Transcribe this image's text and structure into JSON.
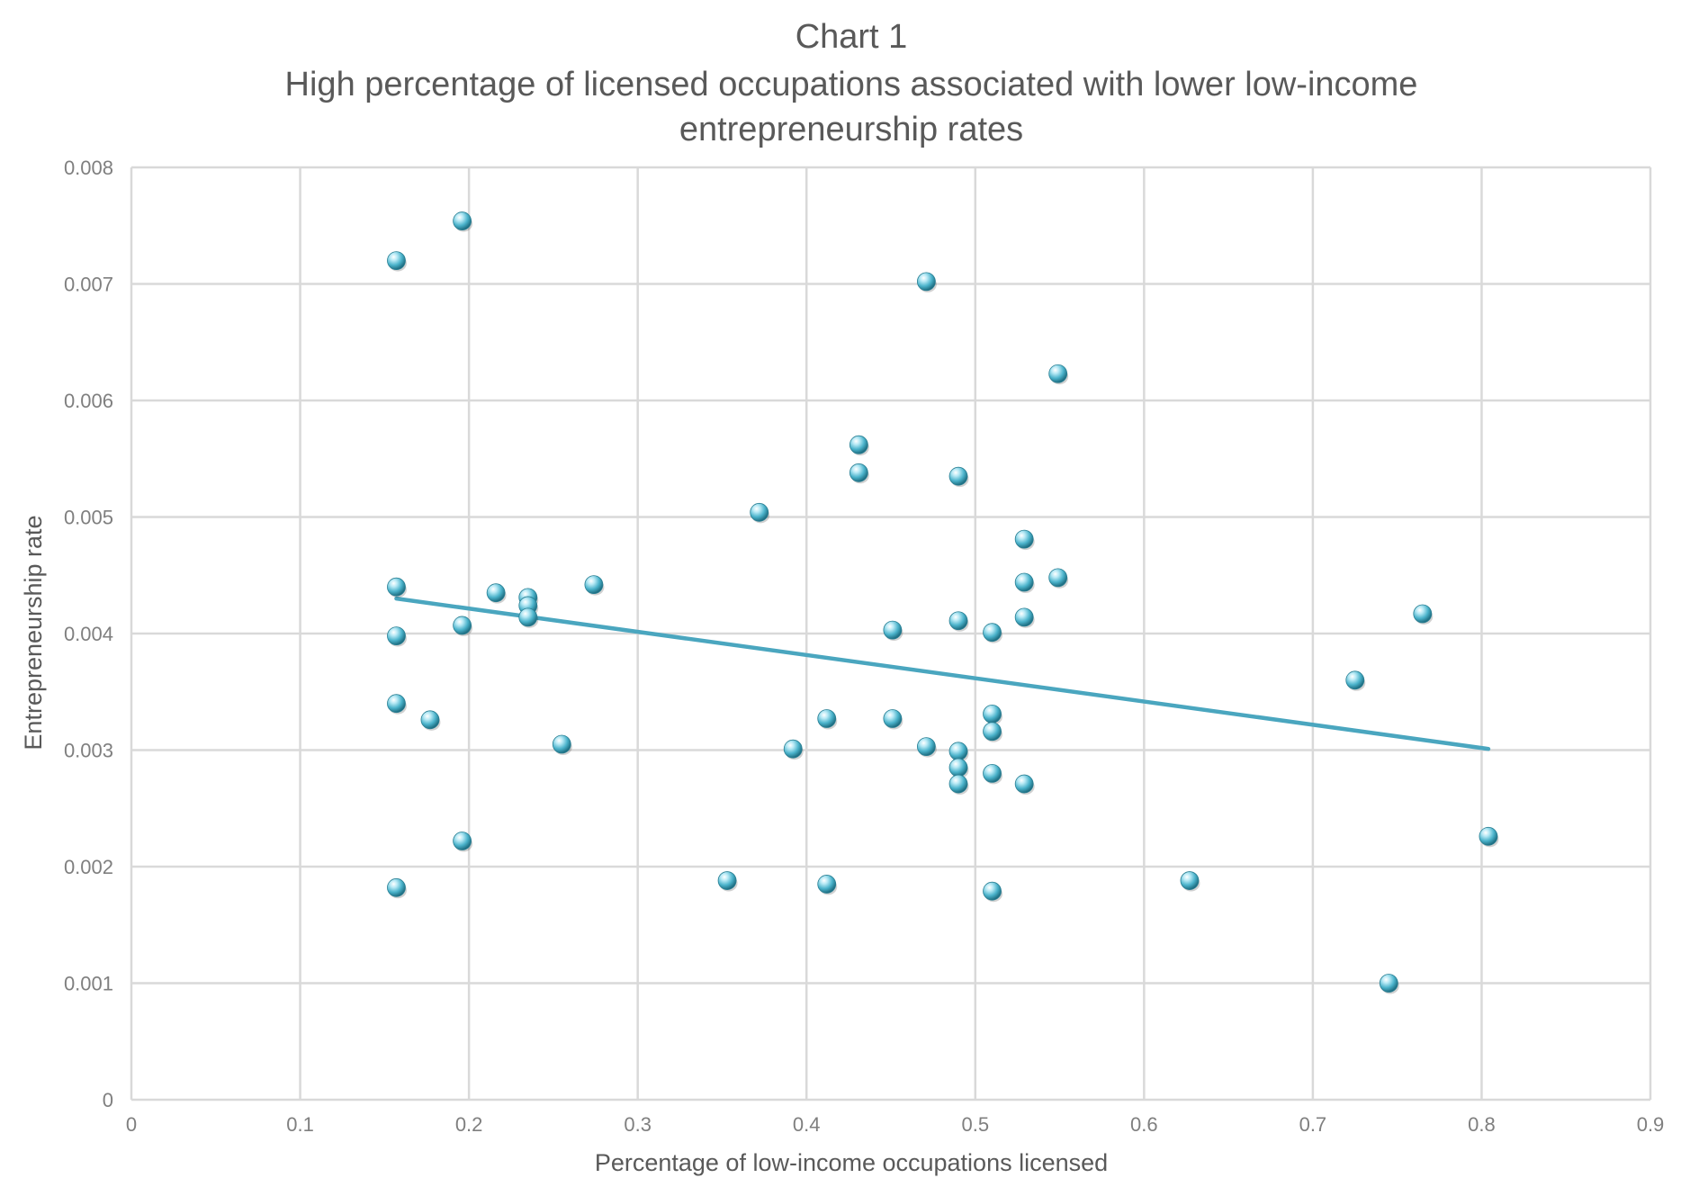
{
  "colors": {
    "marker": "#4bb3cb",
    "trendline": "#4aa6bf",
    "gridline": "#d9d9d9",
    "tick_text": "#7f7f7f",
    "title_text": "#595959"
  },
  "chart_data": {
    "type": "scatter",
    "title": "Chart 1",
    "subtitle": "High percentage of licensed occupations associated with lower low-income entrepreneurship rates",
    "xlabel": "Percentage of low-income occupations licensed",
    "ylabel": "Entrepreneurship rate",
    "xlim": [
      0,
      0.9
    ],
    "ylim": [
      0,
      0.008
    ],
    "x_ticks": [
      "0",
      "0.1",
      "0.2",
      "0.3",
      "0.4",
      "0.5",
      "0.6",
      "0.7",
      "0.8",
      "0.9"
    ],
    "y_ticks": [
      "0",
      "0.001",
      "0.002",
      "0.003",
      "0.004",
      "0.005",
      "0.006",
      "0.007",
      "0.008"
    ],
    "grid": true,
    "legend": "none",
    "trendline": {
      "type": "linear",
      "points": [
        [
          0.157,
          0.0043
        ],
        [
          0.804,
          0.00301
        ]
      ]
    },
    "series": [
      {
        "points": [
          [
            0.157,
            0.0072
          ],
          [
            0.196,
            0.00754
          ],
          [
            0.157,
            0.0044
          ],
          [
            0.157,
            0.00398
          ],
          [
            0.157,
            0.0034
          ],
          [
            0.157,
            0.00182
          ],
          [
            0.177,
            0.00326
          ],
          [
            0.196,
            0.00407
          ],
          [
            0.196,
            0.00222
          ],
          [
            0.216,
            0.00435
          ],
          [
            0.235,
            0.00431
          ],
          [
            0.235,
            0.00424
          ],
          [
            0.235,
            0.00414
          ],
          [
            0.255,
            0.00305
          ],
          [
            0.274,
            0.00442
          ],
          [
            0.353,
            0.00188
          ],
          [
            0.372,
            0.00504
          ],
          [
            0.392,
            0.00301
          ],
          [
            0.412,
            0.00327
          ],
          [
            0.412,
            0.00185
          ],
          [
            0.431,
            0.00562
          ],
          [
            0.431,
            0.00538
          ],
          [
            0.451,
            0.00403
          ],
          [
            0.451,
            0.00327
          ],
          [
            0.471,
            0.00702
          ],
          [
            0.471,
            0.00303
          ],
          [
            0.49,
            0.00535
          ],
          [
            0.49,
            0.00411
          ],
          [
            0.49,
            0.00299
          ],
          [
            0.49,
            0.00285
          ],
          [
            0.49,
            0.00271
          ],
          [
            0.51,
            0.00401
          ],
          [
            0.51,
            0.00331
          ],
          [
            0.51,
            0.00316
          ],
          [
            0.51,
            0.0028
          ],
          [
            0.51,
            0.00179
          ],
          [
            0.529,
            0.00481
          ],
          [
            0.529,
            0.00444
          ],
          [
            0.529,
            0.00414
          ],
          [
            0.529,
            0.00271
          ],
          [
            0.549,
            0.00623
          ],
          [
            0.549,
            0.00448
          ],
          [
            0.627,
            0.00188
          ],
          [
            0.725,
            0.0036
          ],
          [
            0.745,
            0.001
          ],
          [
            0.765,
            0.00417
          ],
          [
            0.804,
            0.00226
          ]
        ]
      }
    ]
  }
}
